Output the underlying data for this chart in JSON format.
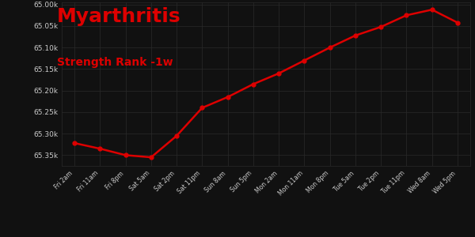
{
  "title": "Myarthritis",
  "subtitle": "Strength Rank -1w",
  "x_labels": [
    "Fri 2am",
    "Fri 11am",
    "Fri 8pm",
    "Sat 5am",
    "Sat 2pm",
    "Sat 11pm",
    "Sun 8am",
    "Sun 5pm",
    "Mon 2am",
    "Mon 11am",
    "Mon 8pm",
    "Tue 5am",
    "Tue 2pm",
    "Tue 11pm",
    "Wed 8am",
    "Wed 5pm"
  ],
  "y_values": [
    65322,
    65335,
    65350,
    65355,
    65305,
    65240,
    65215,
    65185,
    65160,
    65130,
    65100,
    65072,
    65052,
    65025,
    65012,
    65042
  ],
  "line_color": "#dd0000",
  "marker_color": "#dd0000",
  "background_color": "#111111",
  "plot_bg_color": "#111111",
  "grid_color": "#2a2a2a",
  "tick_color": "#cccccc",
  "title_color": "#dd0000",
  "subtitle_color": "#dd0000",
  "title_fontsize": 18,
  "subtitle_fontsize": 10,
  "ylim_min": 64995,
  "ylim_max": 65375,
  "ytick_values": [
    65000,
    65050,
    65100,
    65150,
    65200,
    65250,
    65300,
    65350
  ],
  "line_width": 1.8,
  "marker_size": 3.5
}
